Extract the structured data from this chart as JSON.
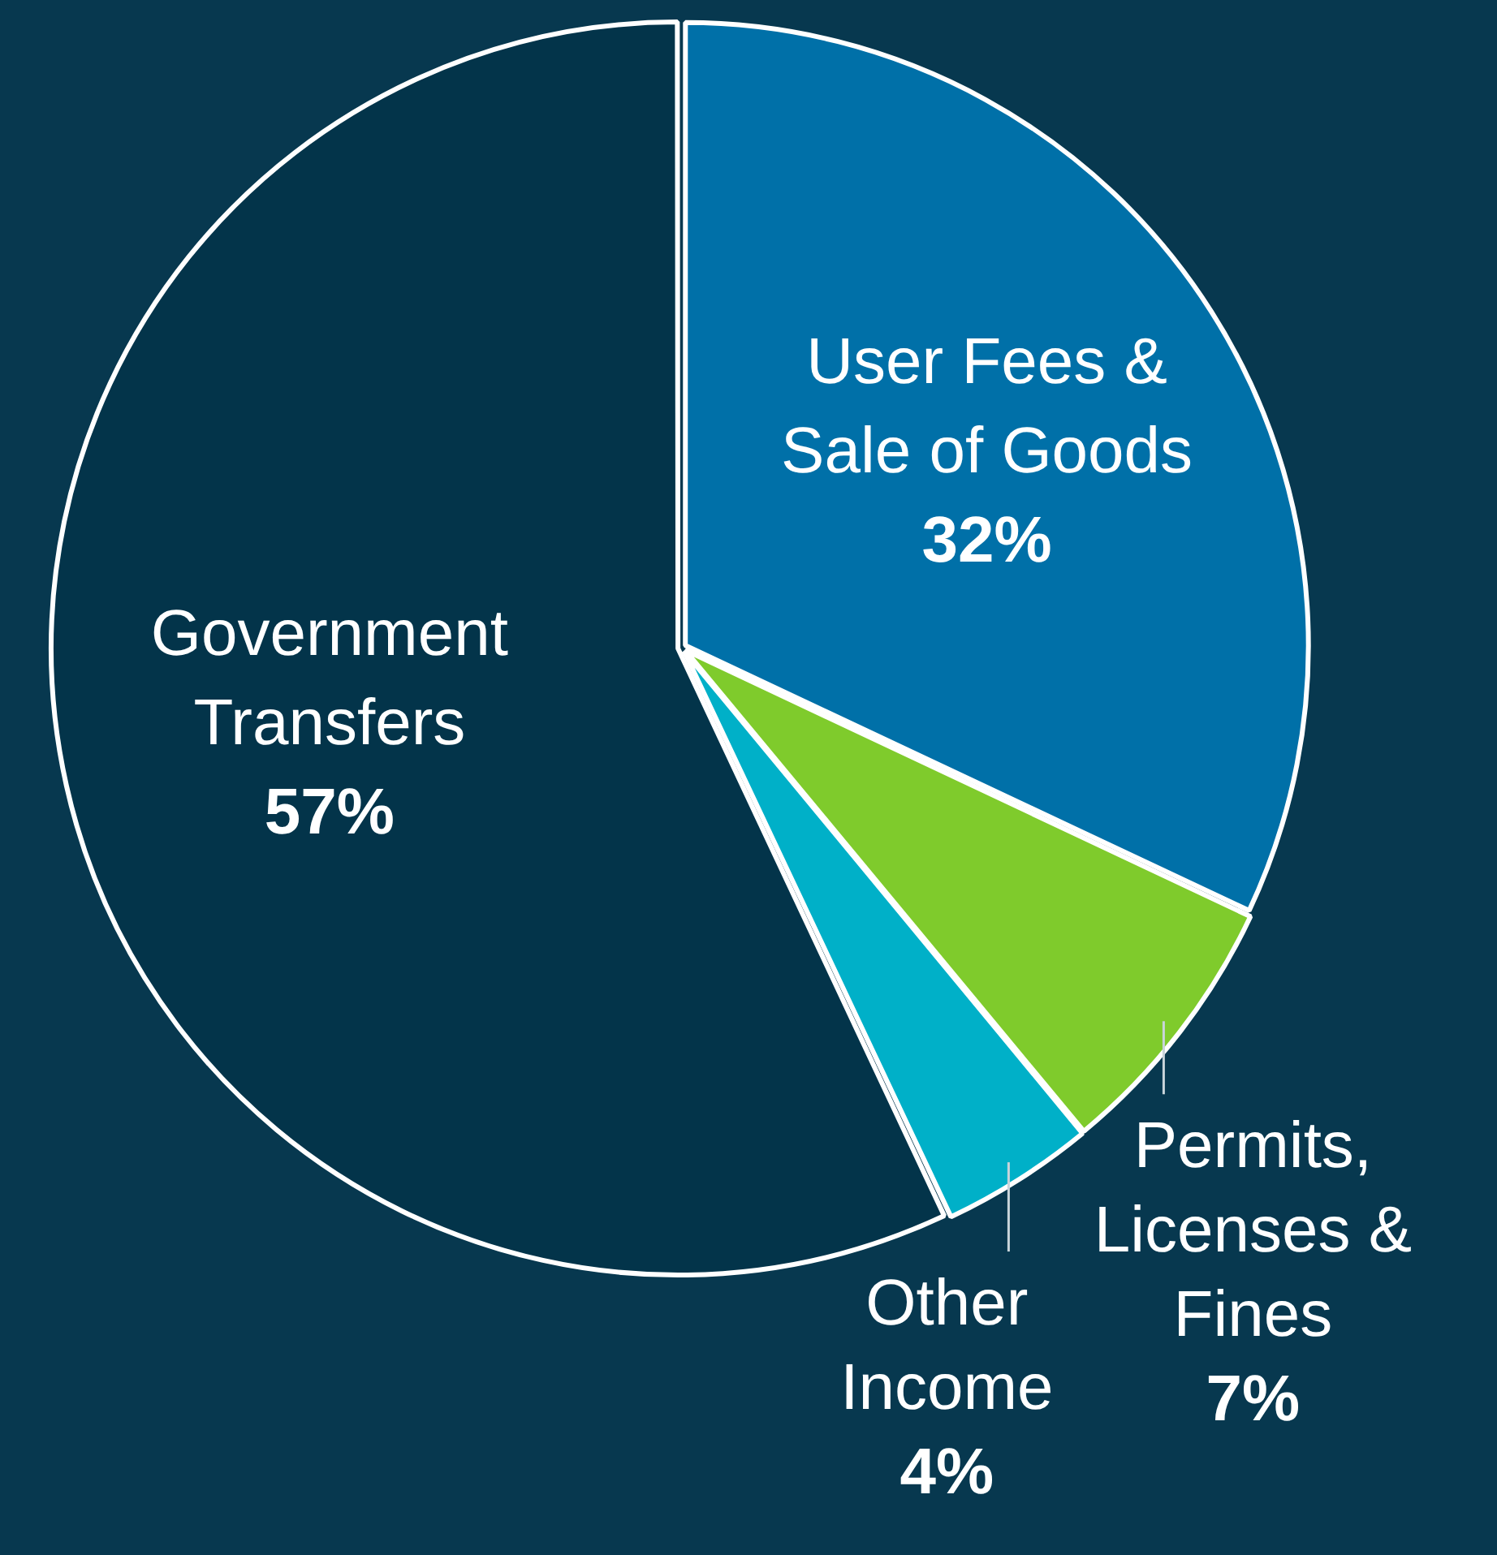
{
  "chart_data": {
    "type": "pie",
    "categories": [
      "User Fees & Sale of Goods",
      "Permits, Licenses & Fines",
      "Other Income",
      "Government Transfers"
    ],
    "values": [
      32,
      7,
      4,
      57
    ],
    "colors": [
      "#0070a8",
      "#7fcb2c",
      "#00b0c8",
      "#03344a"
    ],
    "value_labels": [
      "32%",
      "7%",
      "4%",
      "57%"
    ],
    "legend": false
  }
}
